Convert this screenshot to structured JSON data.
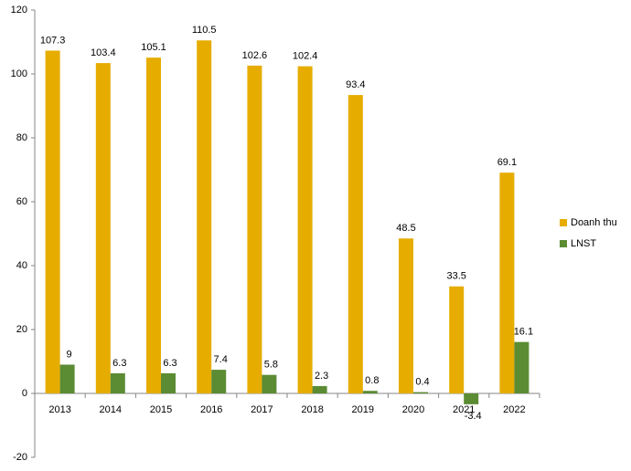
{
  "chart_data": {
    "type": "bar",
    "categories": [
      "2013",
      "2014",
      "2015",
      "2016",
      "2017",
      "2018",
      "2019",
      "2020",
      "2021",
      "2022"
    ],
    "series": [
      {
        "name": "Doanh thu",
        "color": "#e6ac00",
        "values": [
          107.3,
          103.4,
          105.1,
          110.5,
          102.6,
          102.4,
          93.4,
          48.5,
          33.5,
          69.1
        ]
      },
      {
        "name": "LNST",
        "color": "#5b8c33",
        "values": [
          9,
          6.3,
          6.3,
          7.4,
          5.8,
          2.3,
          0.8,
          0.4,
          -3.4,
          16.1
        ]
      }
    ],
    "ylim": [
      -20,
      120
    ],
    "yticks": [
      -20,
      0,
      20,
      40,
      60,
      80,
      100,
      120
    ],
    "grid": false,
    "legend": "right"
  }
}
